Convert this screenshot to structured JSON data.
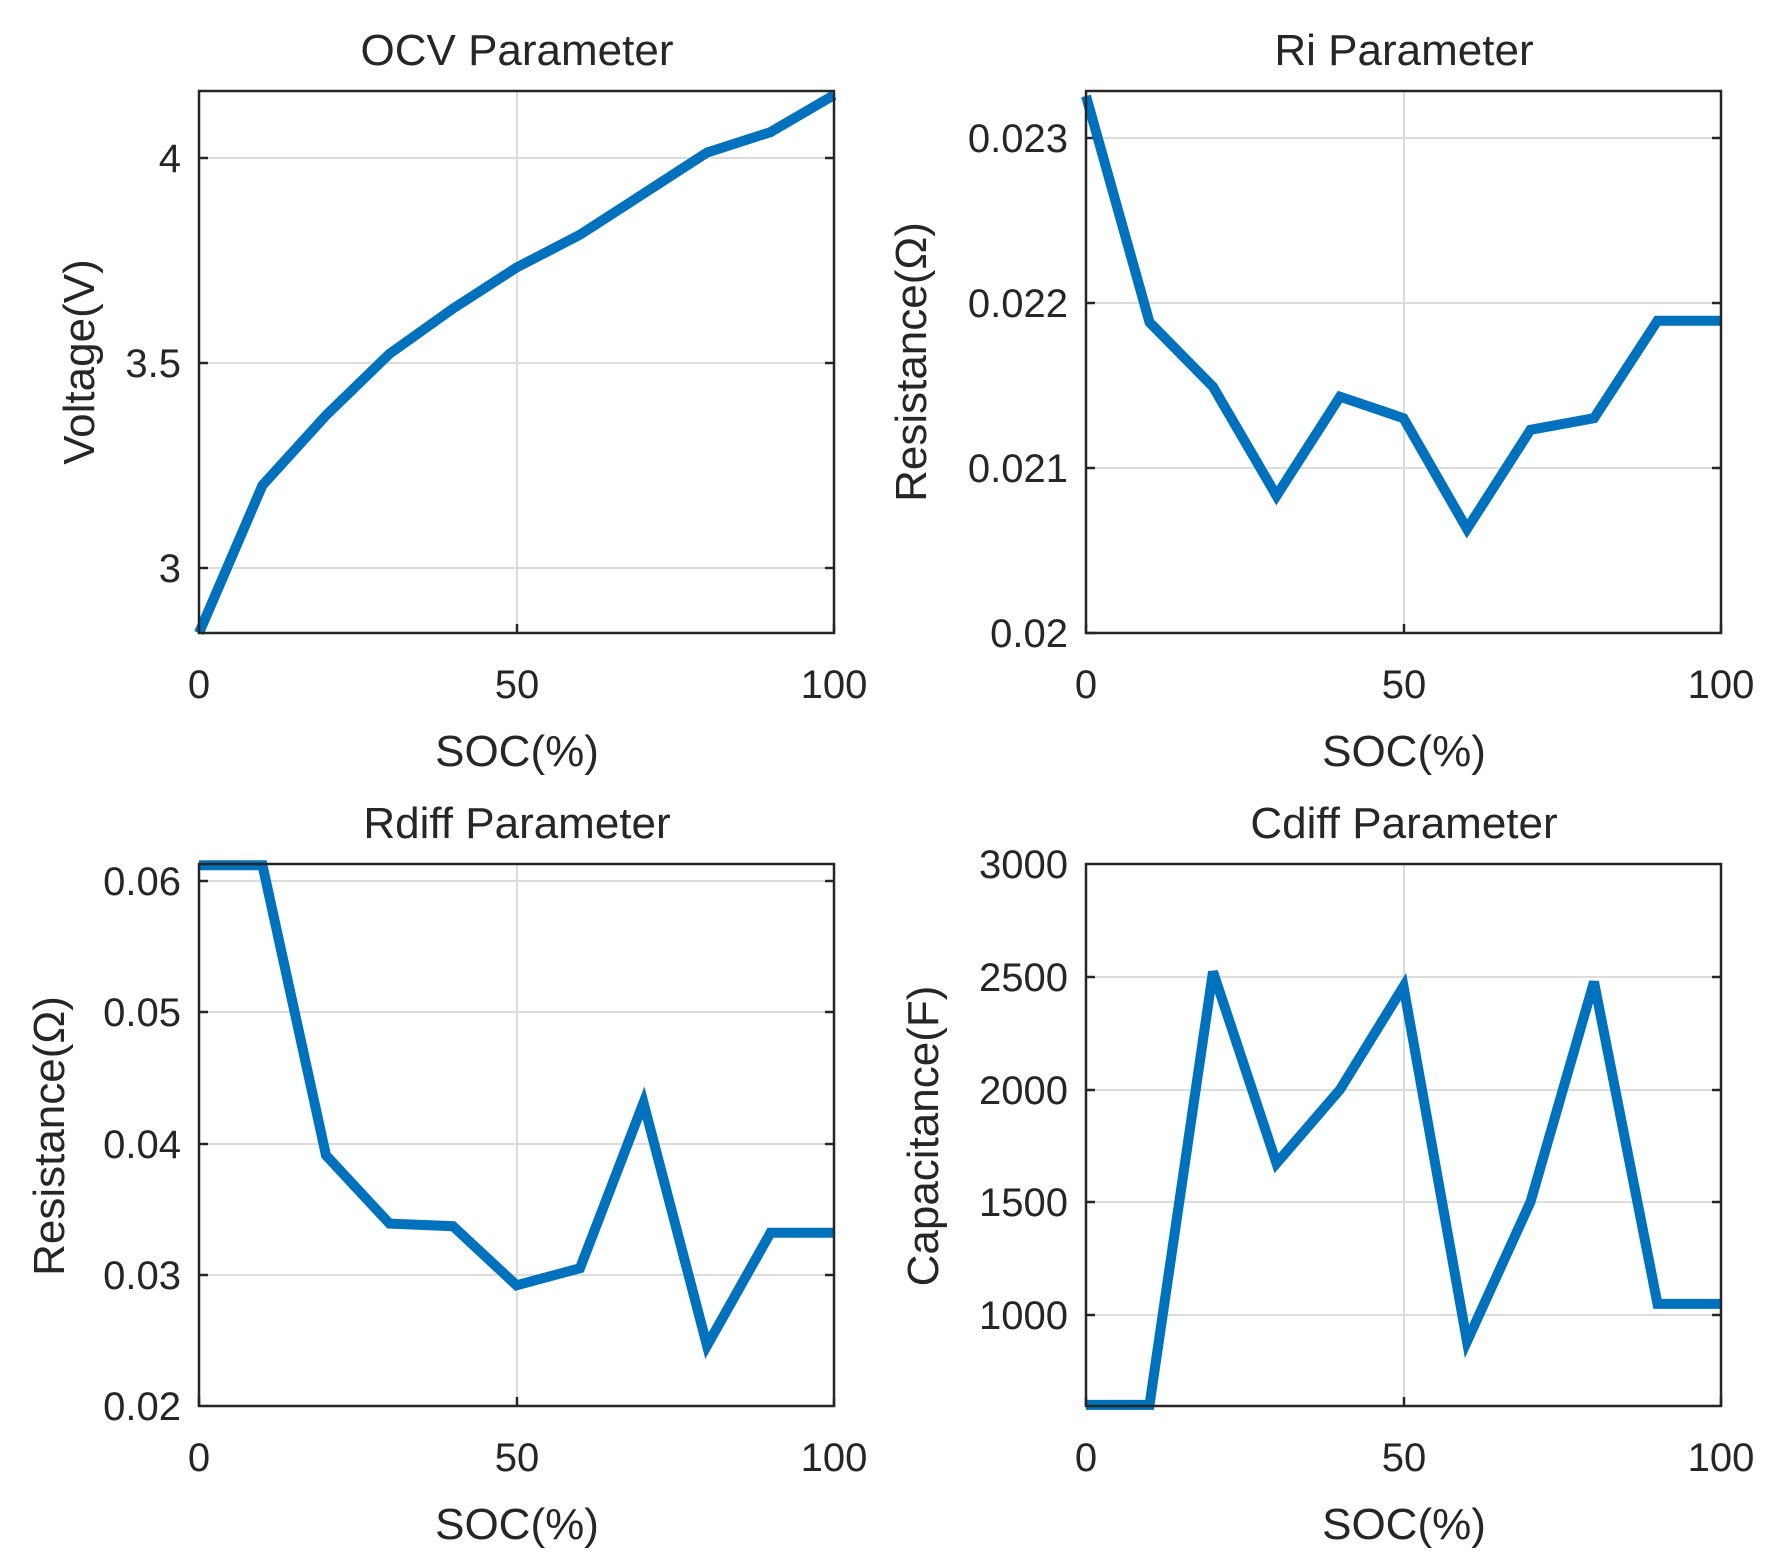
{
  "chart_data": [
    {
      "type": "line",
      "title": "OCV Parameter",
      "xlabel": "SOC(%)",
      "ylabel": "Voltage(V)",
      "xlim": [
        0,
        100
      ],
      "ylim": [
        2.85,
        4.17
      ],
      "xticks": [
        0,
        50,
        100
      ],
      "yticks": [
        3,
        3.5,
        4
      ],
      "ytick_labels": [
        "3",
        "3.5",
        "4"
      ],
      "grid": true,
      "color": "#0072BD",
      "x": [
        0,
        10,
        20,
        30,
        40,
        50,
        60,
        70,
        80,
        90,
        100
      ],
      "y": [
        2.85,
        3.21,
        3.38,
        3.53,
        3.64,
        3.74,
        3.82,
        3.92,
        4.02,
        4.07,
        4.16
      ]
    },
    {
      "type": "line",
      "title": "Ri Parameter",
      "xlabel": "SOC(%)",
      "ylabel": "Resistance(Ω)",
      "xlim": [
        0,
        100
      ],
      "ylim": [
        0.02,
        0.02328
      ],
      "xticks": [
        0,
        50,
        100
      ],
      "yticks": [
        0.02,
        0.021,
        0.022,
        0.023
      ],
      "ytick_labels": [
        "0.02",
        "0.021",
        "0.022",
        "0.023"
      ],
      "grid": true,
      "color": "#0072BD",
      "x": [
        0,
        10,
        20,
        30,
        40,
        50,
        60,
        70,
        80,
        90,
        100
      ],
      "y": [
        0.02325,
        0.02188,
        0.02149,
        0.02083,
        0.02143,
        0.0213,
        0.02063,
        0.02123,
        0.0213,
        0.02189,
        0.02189
      ]
    },
    {
      "type": "line",
      "title": "Rdiff Parameter",
      "xlabel": "SOC(%)",
      "ylabel": "Resistance(Ω)",
      "xlim": [
        0,
        100
      ],
      "ylim": [
        0.02,
        0.0613
      ],
      "xticks": [
        0,
        50,
        100
      ],
      "yticks": [
        0.02,
        0.03,
        0.04,
        0.05,
        0.06
      ],
      "ytick_labels": [
        "0.02",
        "0.03",
        "0.04",
        "0.05",
        "0.06"
      ],
      "grid": true,
      "color": "#0072BD",
      "x": [
        0,
        10,
        20,
        30,
        40,
        50,
        60,
        70,
        80,
        90,
        100
      ],
      "y": [
        0.0612,
        0.0612,
        0.0391,
        0.0339,
        0.0337,
        0.0292,
        0.0305,
        0.0431,
        0.0246,
        0.0332,
        0.0332
      ]
    },
    {
      "type": "line",
      "title": "Cdiff Parameter",
      "xlabel": "SOC(%)",
      "ylabel": "Capacitance(F)",
      "xlim": [
        0,
        100
      ],
      "ylim": [
        610,
        3000
      ],
      "xticks": [
        0,
        50,
        100
      ],
      "yticks": [
        1000,
        1500,
        2000,
        2500,
        3000
      ],
      "ytick_labels": [
        "1000",
        "1500",
        "2000",
        "2500",
        "3000"
      ],
      "grid": true,
      "color": "#0072BD",
      "x": [
        0,
        10,
        20,
        30,
        40,
        50,
        60,
        70,
        80,
        90,
        100
      ],
      "y": [
        615,
        615,
        2525,
        1680,
        2005,
        2460,
        895,
        1510,
        2480,
        1060,
        1060
      ]
    }
  ]
}
